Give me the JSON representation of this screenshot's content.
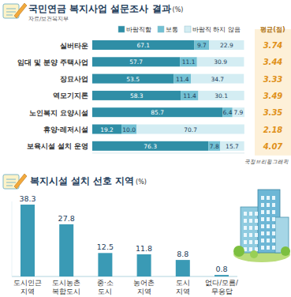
{
  "chart_data": [
    {
      "type": "bar",
      "title": "국민연금 복지사업 설문조사 결과",
      "unit": "(%)",
      "source": "자료/보건복지부",
      "orientation": "horizontal",
      "stacked": true,
      "data_labels": true,
      "tick_labels": "y",
      "legend": "top-right",
      "xlim": [
        0,
        100
      ],
      "categories": [
        "실버타운",
        "임대 및 분양 주택사업",
        "장묘사업",
        "역모기지론",
        "노인복지 요양시설",
        "휴양·레저시설",
        "보육시설 설치 운영"
      ],
      "series": [
        {
          "name": "바람직함",
          "color": "#2f8ea6",
          "values": [
            67.1,
            57.7,
            53.5,
            58.3,
            85.7,
            19.2,
            76.3
          ]
        },
        {
          "name": "보통",
          "color": "#72c0d3",
          "values": [
            9.7,
            11.1,
            11.4,
            11.4,
            6.4,
            10.0,
            7.8
          ],
          "value_labels": [
            "9.7",
            "11.1",
            "11.4",
            "11.4",
            "6.4",
            "10.0",
            "7.8"
          ]
        },
        {
          "name": "바람직 하지 않음",
          "color": "#d4edf3",
          "values": [
            22.9,
            30.9,
            34.7,
            30.1,
            7.9,
            70.7,
            15.7
          ]
        }
      ],
      "averages_title": "평균(점)",
      "averages": [
        3.74,
        3.44,
        3.33,
        3.49,
        3.35,
        2.18,
        4.07
      ],
      "credit": "국정브리핑그래픽"
    },
    {
      "type": "bar",
      "title": "복지시설 설치 선호 지역",
      "unit": "(%)",
      "categories": [
        "도시인근\n지역",
        "도시농촌\n복합도시",
        "중·소\n도시",
        "농어촌\n지역",
        "도시\n지역",
        "없다/모름/\n무응답"
      ],
      "values": [
        38.3,
        27.8,
        12.5,
        11.8,
        8.8,
        0.8
      ],
      "color": "#3a9ab5",
      "ylim": [
        0,
        40
      ],
      "data_labels": true,
      "tick_labels": "x"
    }
  ]
}
